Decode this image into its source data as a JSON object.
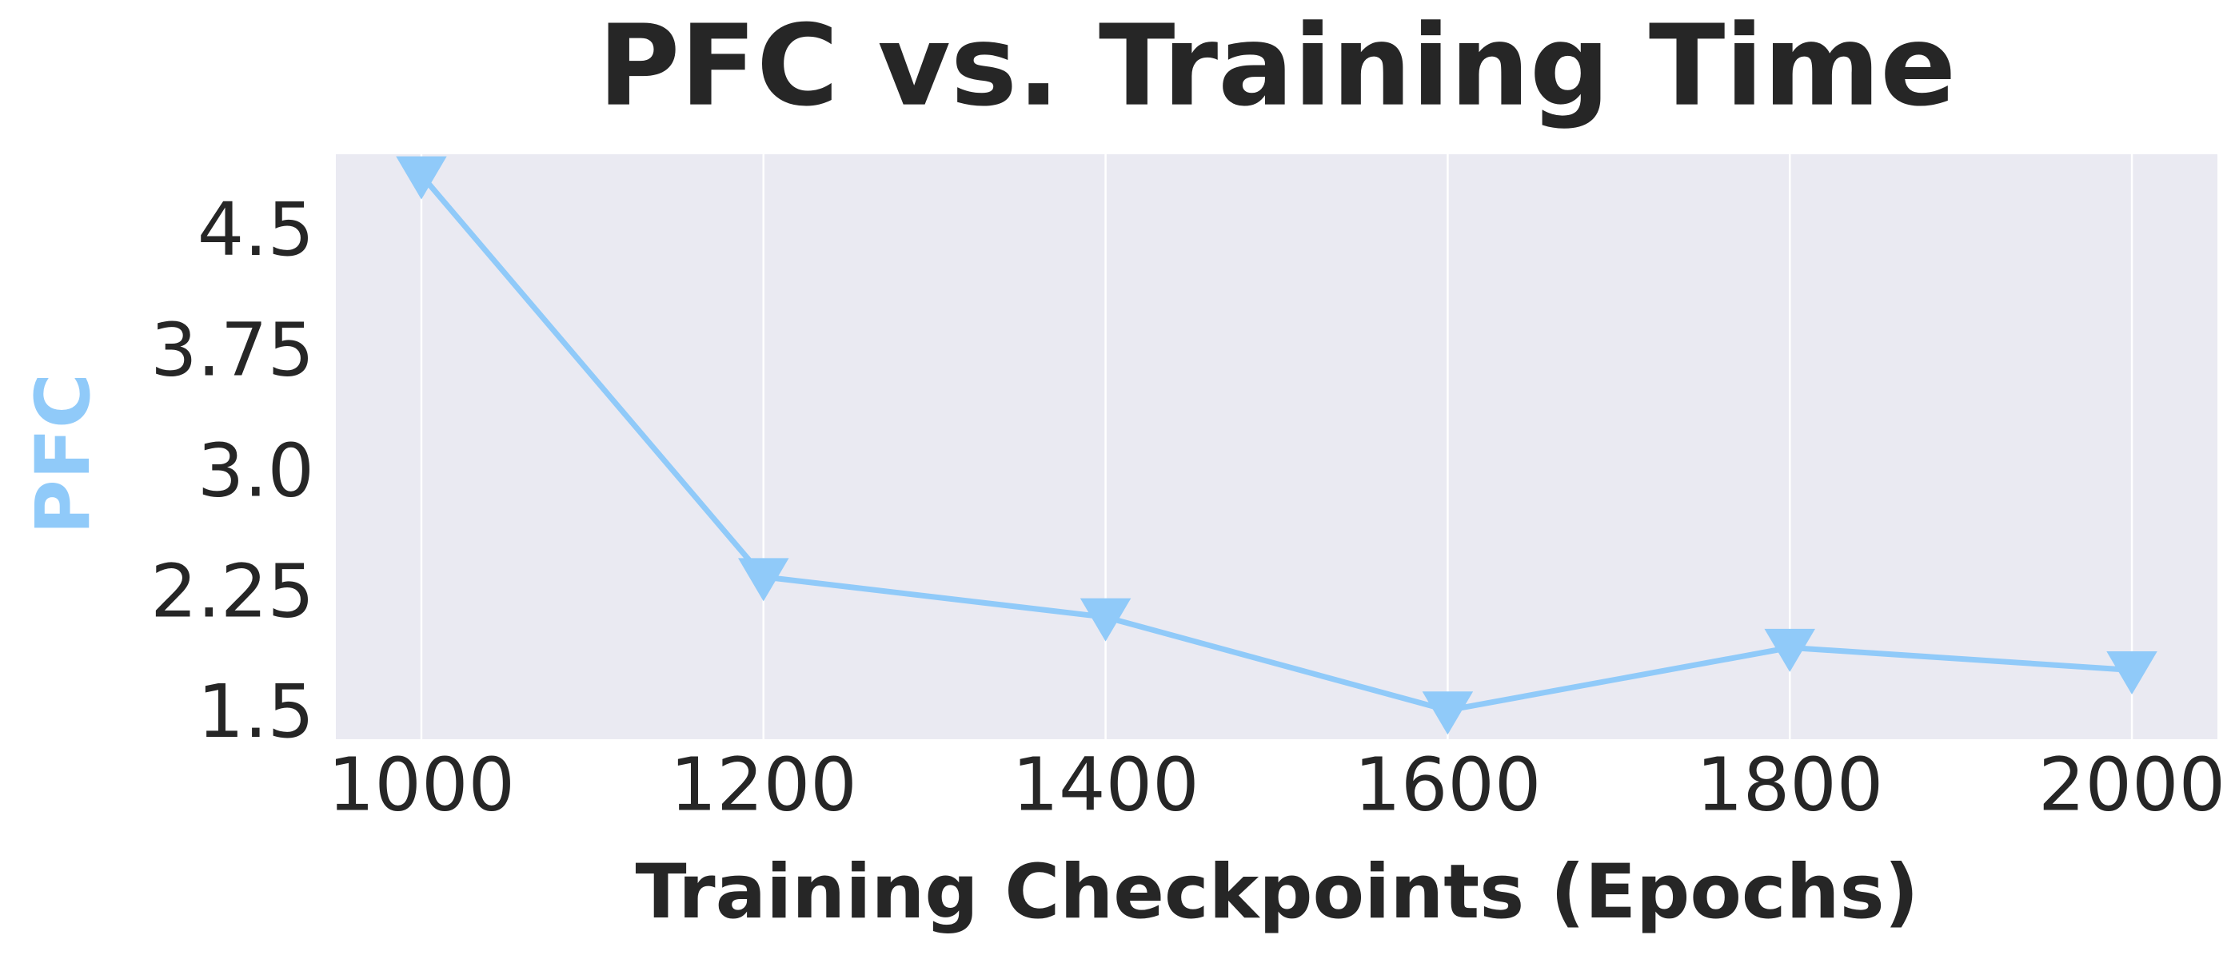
{
  "chart_data": {
    "type": "line",
    "title": "PFC vs. Training Time",
    "x_label": "Training Checkpoints (Epochs)",
    "y_label": "PFC",
    "x": [
      1000,
      1200,
      1400,
      1600,
      1800,
      2000
    ],
    "series": [
      {
        "name": "PFC",
        "color": "#90caf9",
        "marker": "triangle-down",
        "values": [
          4.87,
          2.37,
          2.12,
          1.54,
          1.93,
          1.79
        ]
      }
    ],
    "xlim": [
      950,
      2050
    ],
    "xticks": [
      1000,
      1200,
      1400,
      1600,
      1800,
      2000
    ],
    "ylim": [
      1.36,
      5.0
    ],
    "yticks": [
      1.5,
      2.25,
      {
        "value": 3,
        "label": "3.0"
      },
      3.75,
      4.5
    ],
    "grid": "x",
    "background": "#eaeaf2",
    "y_label_color": "#90caf9"
  }
}
